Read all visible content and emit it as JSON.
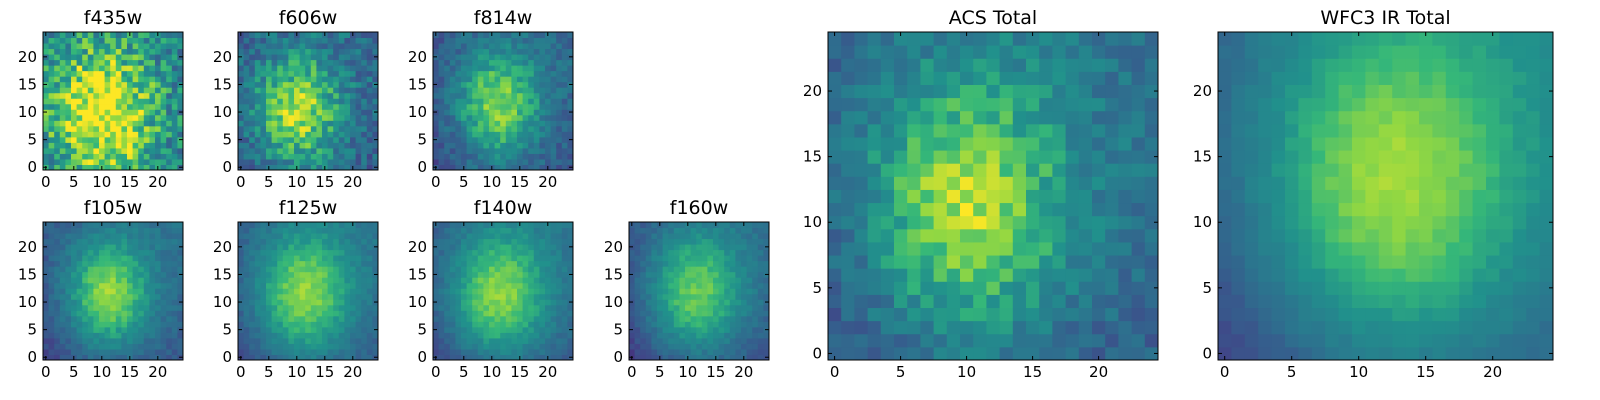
{
  "chart_data": [
    {
      "type": "heatmap",
      "title": "f435w",
      "grid_size": 25,
      "xlim": [
        0,
        24
      ],
      "ylim": [
        0,
        24
      ],
      "xticks": [
        0,
        5,
        10,
        15,
        20
      ],
      "yticks": [
        0,
        5,
        10,
        15,
        20
      ],
      "colormap": "viridis",
      "peak": [
        10,
        10
      ],
      "spread": 7,
      "bg": 0.5,
      "noise": 0.4,
      "grad": 0.0
    },
    {
      "type": "heatmap",
      "title": "f606w",
      "grid_size": 25,
      "xlim": [
        0,
        24
      ],
      "ylim": [
        0,
        24
      ],
      "xticks": [
        0,
        5,
        10,
        15,
        20
      ],
      "yticks": [
        0,
        5,
        10,
        15,
        20
      ],
      "colormap": "viridis",
      "peak": [
        10,
        10
      ],
      "spread": 6,
      "bg": 0.35,
      "noise": 0.3,
      "grad": 0.15
    },
    {
      "type": "heatmap",
      "title": "f814w",
      "grid_size": 25,
      "xlim": [
        0,
        24
      ],
      "ylim": [
        0,
        24
      ],
      "xticks": [
        0,
        5,
        10,
        15,
        20
      ],
      "yticks": [
        0,
        5,
        10,
        15,
        20
      ],
      "colormap": "viridis",
      "peak": [
        11,
        11
      ],
      "spread": 6,
      "bg": 0.3,
      "noise": 0.2,
      "grad": 0.2
    },
    {
      "type": "heatmap",
      "title": "f105w",
      "grid_size": 25,
      "xlim": [
        0,
        24
      ],
      "ylim": [
        0,
        24
      ],
      "xticks": [
        0,
        5,
        10,
        15,
        20
      ],
      "yticks": [
        0,
        5,
        10,
        15,
        20
      ],
      "colormap": "viridis",
      "peak": [
        11,
        11
      ],
      "spread": 6,
      "bg": 0.3,
      "noise": 0.12,
      "grad": 0.25
    },
    {
      "type": "heatmap",
      "title": "f125w",
      "grid_size": 25,
      "xlim": [
        0,
        24
      ],
      "ylim": [
        0,
        24
      ],
      "xticks": [
        0,
        5,
        10,
        15,
        20
      ],
      "yticks": [
        0,
        5,
        10,
        15,
        20
      ],
      "colormap": "viridis",
      "peak": [
        11,
        11
      ],
      "spread": 7,
      "bg": 0.3,
      "noise": 0.1,
      "grad": 0.25
    },
    {
      "type": "heatmap",
      "title": "f140w",
      "grid_size": 25,
      "xlim": [
        0,
        24
      ],
      "ylim": [
        0,
        24
      ],
      "xticks": [
        0,
        5,
        10,
        15,
        20
      ],
      "yticks": [
        0,
        5,
        10,
        15,
        20
      ],
      "colormap": "viridis",
      "peak": [
        11,
        11
      ],
      "spread": 7,
      "bg": 0.3,
      "noise": 0.1,
      "grad": 0.25
    },
    {
      "type": "heatmap",
      "title": "f160w",
      "grid_size": 25,
      "xlim": [
        0,
        24
      ],
      "ylim": [
        0,
        24
      ],
      "xticks": [
        0,
        5,
        10,
        15,
        20
      ],
      "yticks": [
        0,
        5,
        10,
        15,
        20
      ],
      "colormap": "viridis",
      "peak": [
        11,
        11
      ],
      "spread": 7,
      "bg": 0.25,
      "noise": 0.1,
      "grad": 0.3
    },
    {
      "type": "heatmap",
      "title": "ACS Total",
      "grid_size": 25,
      "xlim": [
        0,
        24
      ],
      "ylim": [
        0,
        24
      ],
      "xticks": [
        0,
        5,
        10,
        15,
        20
      ],
      "yticks": [
        0,
        5,
        10,
        15,
        20
      ],
      "colormap": "viridis",
      "peak": [
        10,
        11
      ],
      "spread": 6,
      "bg": 0.35,
      "noise": 0.2,
      "grad": 0.2
    },
    {
      "type": "heatmap",
      "title": "WFC3 IR Total",
      "grid_size": 25,
      "xlim": [
        0,
        24
      ],
      "ylim": [
        0,
        24
      ],
      "xticks": [
        0,
        5,
        10,
        15,
        20
      ],
      "yticks": [
        0,
        5,
        10,
        15,
        20
      ],
      "colormap": "viridis",
      "peak": [
        12,
        12
      ],
      "spread": 8,
      "bg": 0.3,
      "noise": 0.05,
      "grad": 0.35
    }
  ]
}
